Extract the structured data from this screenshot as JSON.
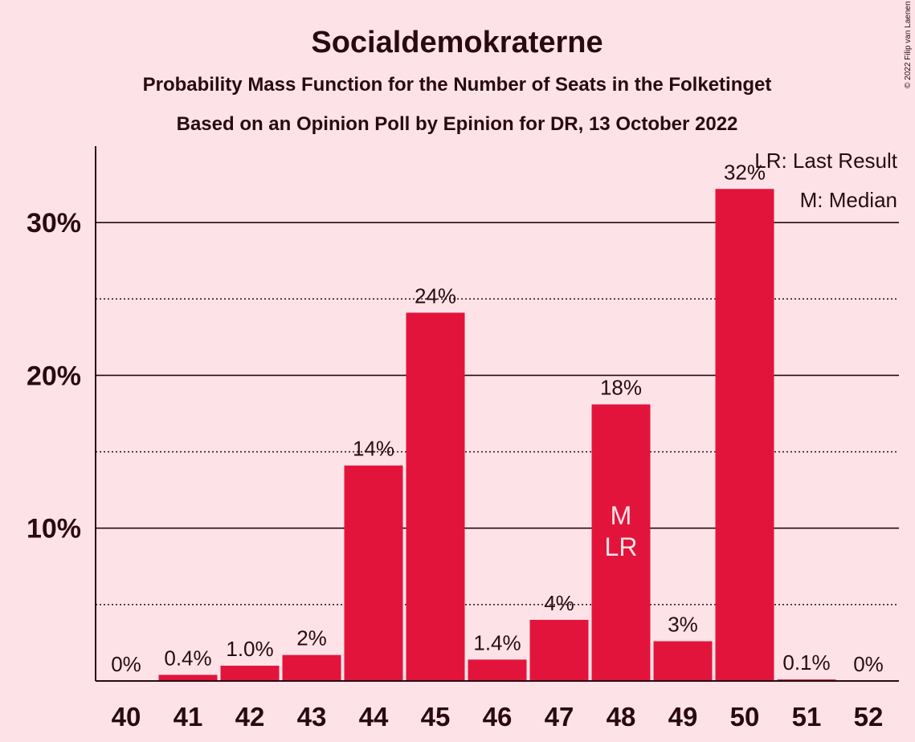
{
  "chart_data": {
    "type": "bar",
    "title": "Socialdemokraterne",
    "subtitle": "Probability Mass Function for the Number of Seats in the Folketinget",
    "subtitle2": "Based on an Opinion Poll by Epinion for DR, 13 October 2022",
    "copyright": "© 2022 Filip van Laenen",
    "categories": [
      "40",
      "41",
      "42",
      "43",
      "44",
      "45",
      "46",
      "47",
      "48",
      "49",
      "50",
      "51",
      "52"
    ],
    "values": [
      0,
      0.4,
      1.0,
      1.7,
      14.1,
      24.1,
      1.4,
      4.0,
      18.1,
      2.6,
      32.2,
      0.1,
      0
    ],
    "data_labels": [
      "0%",
      "0.4%",
      "1.0%",
      "2%",
      "14%",
      "24%",
      "1.4%",
      "4%",
      "18%",
      "3%",
      "32%",
      "0.1%",
      "0%"
    ],
    "ylim": [
      0,
      35
    ],
    "yticks": [
      10,
      20,
      30
    ],
    "ytick_labels": [
      "10%",
      "20%",
      "30%"
    ],
    "minor_gridlines": [
      5,
      15,
      25
    ],
    "bar_color": "#E3143C",
    "markers": {
      "median_index": 8,
      "last_result_index": 8,
      "median_label": "M",
      "last_result_label": "LR"
    },
    "legend": [
      "LR: Last Result",
      "M: Median"
    ],
    "legend_position": "top-right"
  }
}
